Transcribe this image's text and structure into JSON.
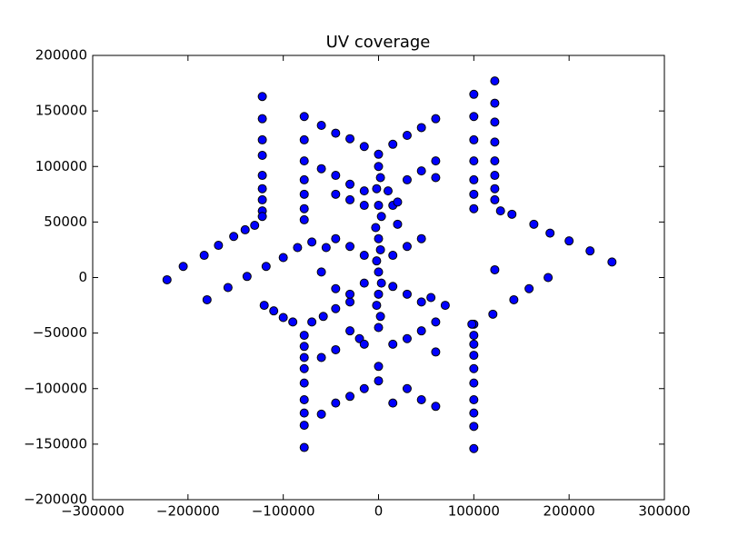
{
  "chart_data": {
    "type": "scatter",
    "title": "UV coverage",
    "color": "#0000ff",
    "x": [
      -122000,
      -122000,
      -122000,
      -122000,
      -122000,
      -122000,
      -122000,
      -122000,
      -122000,
      -78000,
      -78000,
      -78000,
      -78000,
      -78000,
      -78000,
      -78000,
      -78000,
      -78000,
      -78000,
      -78000,
      -78000,
      -78000,
      -78000,
      -78000,
      -78000,
      100000,
      100000,
      100000,
      100000,
      100000,
      100000,
      100000,
      100000,
      100000,
      100000,
      100000,
      100000,
      100000,
      100000,
      100000,
      100000,
      100000,
      122000,
      122000,
      122000,
      122000,
      122000,
      122000,
      122000,
      122000,
      122000,
      -222000,
      -205000,
      -183000,
      -168000,
      -152000,
      -140000,
      -130000,
      245000,
      222000,
      200000,
      180000,
      163000,
      140000,
      128000,
      -180000,
      -158000,
      -138000,
      -118000,
      -100000,
      -85000,
      -70000,
      -55000,
      178000,
      158000,
      142000,
      120000,
      98000,
      70000,
      55000,
      -120000,
      -110000,
      -100000,
      -90000,
      -70000,
      -58000,
      -45000,
      -30000,
      -60000,
      -45000,
      -30000,
      -15000,
      0,
      15000,
      30000,
      45000,
      60000,
      -60000,
      -45000,
      -30000,
      -15000,
      15000,
      30000,
      45000,
      60000,
      -45000,
      -30000,
      -15000,
      10000,
      20000,
      60000,
      -60000,
      -45000,
      -30000,
      -15000,
      0,
      15000,
      30000,
      45000,
      60000,
      0,
      2000,
      -2000,
      0,
      3000,
      -3000,
      0,
      2000,
      -2000,
      0,
      3000,
      0,
      -2000,
      2000,
      0,
      0,
      -45000,
      -30000,
      -15000,
      15000,
      30000,
      45000,
      -45000,
      -30000,
      -15000,
      15000,
      30000,
      45000,
      -60000,
      60000,
      -20000,
      20000,
      -30000,
      -15000,
      15000,
      30000,
      45000,
      60000,
      -45000,
      -60000
    ],
    "values": [
      163000,
      143000,
      124000,
      110000,
      92000,
      80000,
      70000,
      60000,
      55000,
      145000,
      124000,
      105000,
      88000,
      75000,
      62000,
      52000,
      -52000,
      -62000,
      -72000,
      -82000,
      -95000,
      -110000,
      -122000,
      -133000,
      -153000,
      165000,
      145000,
      124000,
      105000,
      88000,
      75000,
      62000,
      -42000,
      -52000,
      -60000,
      -70000,
      -82000,
      -95000,
      -110000,
      -122000,
      -134000,
      -154000,
      177000,
      157000,
      140000,
      122000,
      105000,
      92000,
      80000,
      70000,
      7000,
      -2000,
      10000,
      20000,
      29000,
      37000,
      43000,
      47000,
      14000,
      24000,
      33000,
      40000,
      48000,
      57000,
      60000,
      -20000,
      -9000,
      1000,
      10000,
      18000,
      27000,
      32000,
      27000,
      0,
      -10000,
      -20000,
      -33000,
      -42000,
      -25000,
      -18000,
      -25000,
      -30000,
      -36000,
      -40000,
      -40000,
      -35000,
      -28000,
      -22000,
      137000,
      130000,
      125000,
      118000,
      111000,
      120000,
      128000,
      135000,
      143000,
      98000,
      92000,
      84000,
      78000,
      65000,
      88000,
      96000,
      105000,
      75000,
      70000,
      65000,
      78000,
      68000,
      90000,
      -123000,
      -113000,
      -107000,
      -100000,
      -93000,
      -113000,
      -100000,
      -110000,
      -116000,
      100000,
      90000,
      80000,
      65000,
      55000,
      45000,
      35000,
      25000,
      15000,
      5000,
      -5000,
      -15000,
      -25000,
      -35000,
      -45000,
      -80000,
      35000,
      28000,
      20000,
      -8000,
      -15000,
      -22000,
      -10000,
      -15000,
      -5000,
      20000,
      28000,
      35000,
      5000,
      -40000,
      -55000,
      48000,
      -48000,
      -60000,
      -60000,
      -55000,
      -48000,
      -67000,
      -65000,
      -72000
    ],
    "xlim": [
      -300000,
      300000
    ],
    "xticks": [
      {
        "value": -300000,
        "label": "−300000"
      },
      {
        "value": -200000,
        "label": "−200000"
      },
      {
        "value": -100000,
        "label": "−100000"
      },
      0,
      100000,
      200000,
      300000
    ],
    "ylim": [
      -200000,
      200000
    ],
    "yticks": [
      {
        "value": -200000,
        "label": "−200000"
      },
      {
        "value": -150000,
        "label": "−150000"
      },
      {
        "value": -100000,
        "label": "−100000"
      },
      {
        "value": -50000,
        "label": "−50000"
      },
      0,
      50000,
      100000,
      150000,
      200000
    ]
  }
}
